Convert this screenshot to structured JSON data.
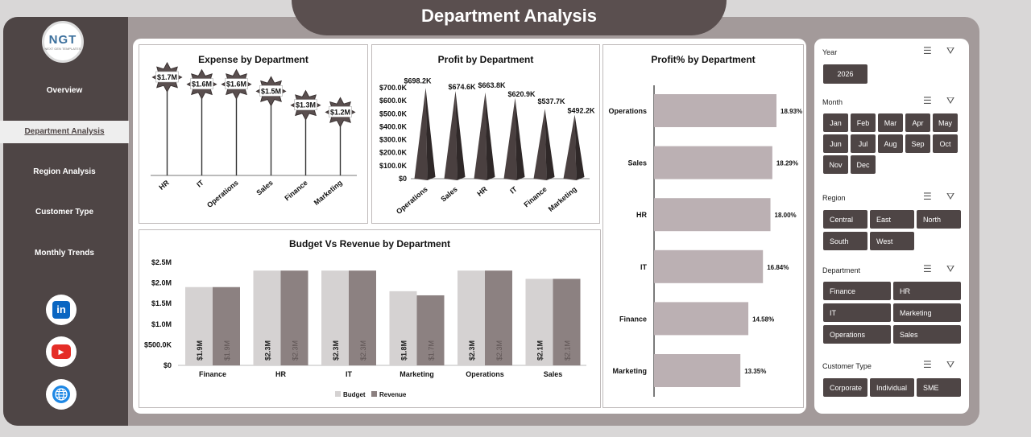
{
  "header": {
    "title": "Department Analysis"
  },
  "logo": {
    "text": "NGT",
    "sub": "NEXT GEN TEMPLATES"
  },
  "nav": [
    {
      "label": "Overview",
      "active": false
    },
    {
      "label": "Department Analysis",
      "active": true
    },
    {
      "label": "Region Analysis",
      "active": false
    },
    {
      "label": "Customer Type",
      "active": false
    },
    {
      "label": "Monthly Trends",
      "active": false
    }
  ],
  "social": [
    {
      "icon": "linkedin-icon",
      "label": "in",
      "color": "#0a66c2"
    },
    {
      "icon": "youtube-icon",
      "label": "▶",
      "color": "#e52d27"
    },
    {
      "icon": "globe-icon",
      "label": "🌐",
      "color": "#1e88e5"
    }
  ],
  "colors": {
    "dark": "#4e4545",
    "light": "#c9c1c1",
    "budget": "#d5d2d2",
    "revenue": "#8c8181",
    "bar": "#bbb0b3"
  },
  "slicers": {
    "year": {
      "title": "Year",
      "options": [
        "2026"
      ]
    },
    "month": {
      "title": "Month",
      "options": [
        "Jan",
        "Feb",
        "Mar",
        "Apr",
        "May",
        "Jun",
        "Jul",
        "Aug",
        "Sep",
        "Oct",
        "Nov",
        "Dec"
      ]
    },
    "region": {
      "title": "Region",
      "options": [
        "Central",
        "East",
        "North",
        "South",
        "West"
      ]
    },
    "department": {
      "title": "Department",
      "options": [
        "Finance",
        "HR",
        "IT",
        "Marketing",
        "Operations",
        "Sales"
      ]
    },
    "customer_type": {
      "title": "Customer Type",
      "options": [
        "Corporate",
        "Individual",
        "SME"
      ]
    }
  },
  "chart_data": [
    {
      "type": "line",
      "title": "Expense by Department",
      "categories": [
        "HR",
        "IT",
        "Operations",
        "Sales",
        "Finance",
        "Marketing"
      ],
      "values": [
        1.7,
        1.6,
        1.6,
        1.5,
        1.3,
        1.2
      ],
      "labels": [
        "$1.7M",
        "$1.6M",
        "$1.6M",
        "$1.5M",
        "$1.3M",
        "$1.2M"
      ]
    },
    {
      "type": "bar",
      "title": "Profit by Department",
      "categories": [
        "Operations",
        "Sales",
        "HR",
        "IT",
        "Finance",
        "Marketing"
      ],
      "values": [
        698.2,
        674.6,
        663.8,
        620.9,
        537.7,
        492.2
      ],
      "labels": [
        "$698.2K",
        "$674.6K",
        "$663.8K",
        "$620.9K",
        "$537.7K",
        "$492.2K"
      ],
      "ylim": [
        0,
        700
      ],
      "yticks": [
        "$0",
        "$100.0K",
        "$200.0K",
        "$300.0K",
        "$400.0K",
        "$500.0K",
        "$600.0K",
        "$700.0K"
      ]
    },
    {
      "type": "bar",
      "title": "Profit% by Department",
      "categories": [
        "Operations",
        "Sales",
        "HR",
        "IT",
        "Finance",
        "Marketing"
      ],
      "values": [
        18.93,
        18.29,
        18.0,
        16.84,
        14.58,
        13.35
      ],
      "labels": [
        "18.93%",
        "18.29%",
        "18.00%",
        "16.84%",
        "14.58%",
        "13.35%"
      ]
    },
    {
      "type": "bar",
      "title": "Budget Vs Revenue by Department",
      "categories": [
        "Finance",
        "HR",
        "IT",
        "Marketing",
        "Operations",
        "Sales"
      ],
      "series": [
        {
          "name": "Budget",
          "values": [
            1.9,
            2.3,
            2.3,
            1.8,
            2.3,
            2.1
          ],
          "labels": [
            "$1.9M",
            "$2.3M",
            "$2.3M",
            "$1.8M",
            "$2.3M",
            "$2.1M"
          ]
        },
        {
          "name": "Revenue",
          "values": [
            1.9,
            2.3,
            2.3,
            1.7,
            2.3,
            2.1
          ],
          "labels": [
            "$1.9M",
            "$2.3M",
            "$2.3M",
            "$1.7M",
            "$2.3M",
            "$2.1M"
          ]
        }
      ],
      "ylim": [
        0,
        2.5
      ],
      "yticks": [
        "$0",
        "$500.0K",
        "$1.0M",
        "$1.5M",
        "$2.0M",
        "$2.5M"
      ]
    }
  ]
}
